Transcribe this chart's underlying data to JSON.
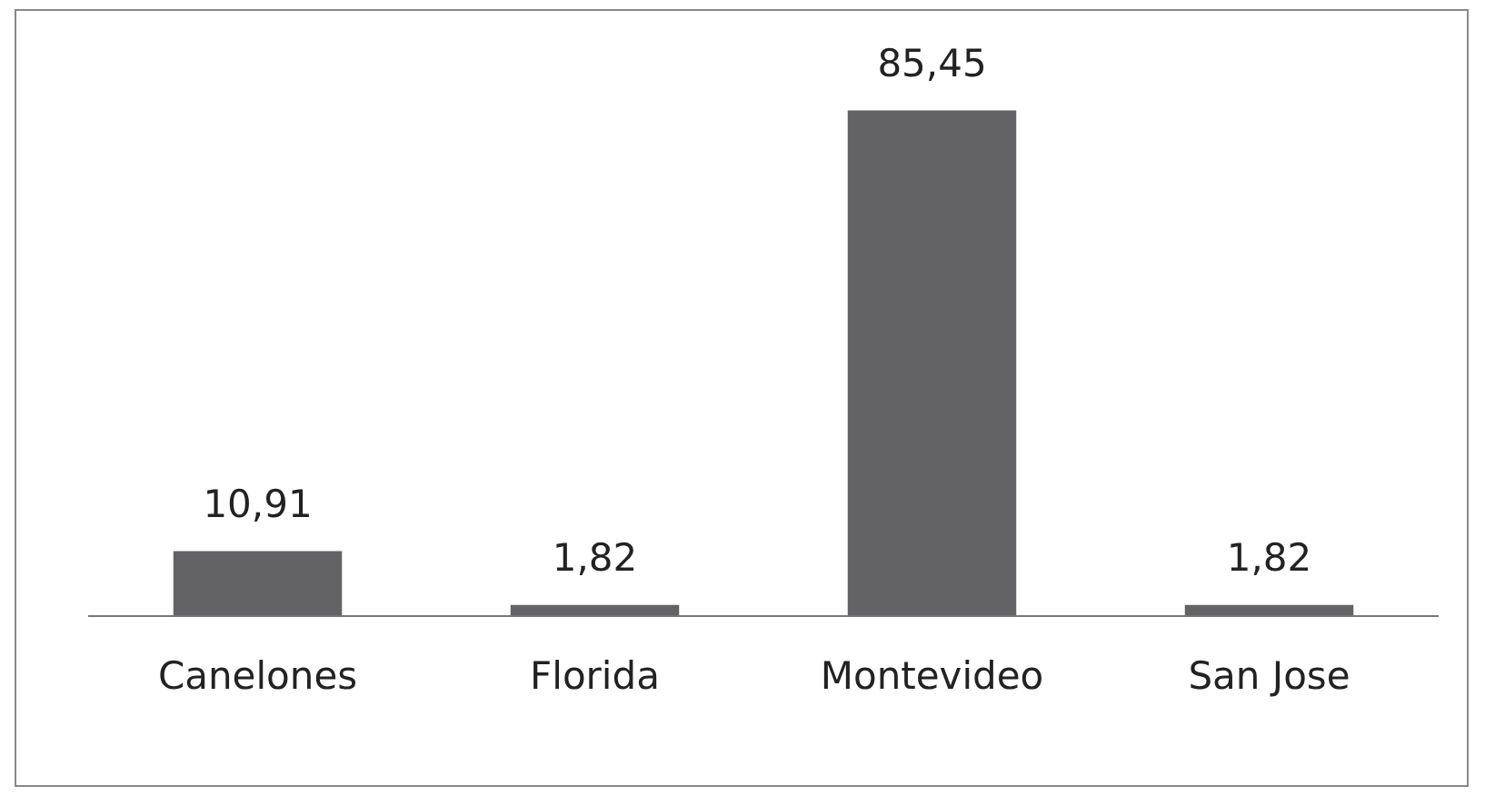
{
  "chart_data": {
    "type": "bar",
    "categories": [
      "Canelones",
      "Florida",
      "Montevideo",
      "San Jose"
    ],
    "values": [
      10.91,
      1.82,
      85.45,
      1.82
    ],
    "value_labels": [
      "10,91",
      "1,82",
      "85,45",
      "1,82"
    ],
    "color": "#636366",
    "grid": false,
    "legend": false
  }
}
